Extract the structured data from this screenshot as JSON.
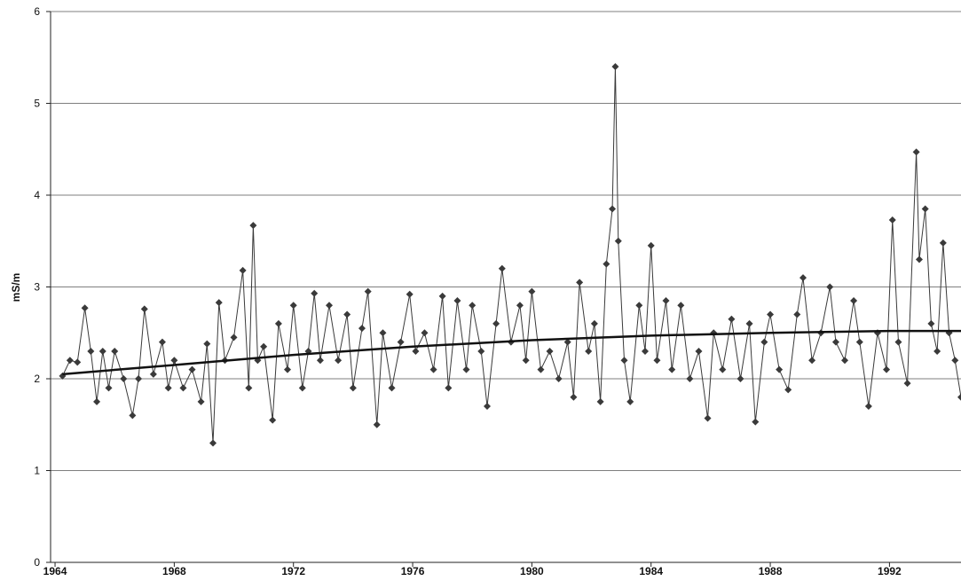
{
  "chart_data": {
    "type": "line",
    "ylabel": "mS/m",
    "xlim": [
      1963.85,
      1994.4
    ],
    "xticks": [
      1964,
      1968,
      1972,
      1976,
      1980,
      1984,
      1988,
      1992
    ],
    "ylim": [
      0,
      6
    ],
    "yticks": [
      0,
      1,
      2,
      3,
      4,
      5,
      6
    ],
    "grid": true,
    "series": [
      {
        "color": "#3a3a3a",
        "marker": "diamond",
        "x": [
          1964.25,
          1964.5,
          1964.75,
          1965.0,
          1965.2,
          1965.4,
          1965.6,
          1965.8,
          1966.0,
          1966.3,
          1966.6,
          1966.8,
          1967.0,
          1967.3,
          1967.6,
          1967.8,
          1968.0,
          1968.3,
          1968.6,
          1968.9,
          1969.1,
          1969.3,
          1969.5,
          1969.7,
          1970.0,
          1970.3,
          1970.5,
          1970.65,
          1970.8,
          1971.0,
          1971.3,
          1971.5,
          1971.8,
          1972.0,
          1972.3,
          1972.5,
          1972.7,
          1972.9,
          1973.2,
          1973.5,
          1973.8,
          1974.0,
          1974.3,
          1974.5,
          1974.8,
          1975.0,
          1975.3,
          1975.6,
          1975.9,
          1976.1,
          1976.4,
          1976.7,
          1977.0,
          1977.2,
          1977.5,
          1977.8,
          1978.0,
          1978.3,
          1978.5,
          1978.8,
          1979.0,
          1979.3,
          1979.6,
          1979.8,
          1980.0,
          1980.3,
          1980.6,
          1980.9,
          1981.2,
          1981.4,
          1981.6,
          1981.9,
          1982.1,
          1982.3,
          1982.5,
          1982.7,
          1982.8,
          1982.9,
          1983.1,
          1983.3,
          1983.6,
          1983.8,
          1984.0,
          1984.2,
          1984.5,
          1984.7,
          1985.0,
          1985.3,
          1985.6,
          1985.9,
          1986.1,
          1986.4,
          1986.7,
          1987.0,
          1987.3,
          1987.5,
          1987.8,
          1988.0,
          1988.3,
          1988.6,
          1988.9,
          1989.1,
          1989.4,
          1989.7,
          1990.0,
          1990.2,
          1990.5,
          1990.8,
          1991.0,
          1991.3,
          1991.6,
          1991.9,
          1992.1,
          1992.3,
          1992.6,
          1992.9,
          1993.0,
          1993.2,
          1993.4,
          1993.6,
          1993.8,
          1994.0,
          1994.2,
          1994.4
        ],
        "values": [
          2.03,
          2.2,
          2.18,
          2.77,
          2.3,
          1.75,
          2.3,
          1.9,
          2.3,
          2.0,
          1.6,
          2.0,
          2.76,
          2.05,
          2.4,
          1.9,
          2.2,
          1.9,
          2.1,
          1.75,
          2.38,
          1.3,
          2.83,
          2.2,
          2.45,
          3.18,
          1.9,
          3.67,
          2.2,
          2.35,
          1.55,
          2.6,
          2.1,
          2.8,
          1.9,
          2.3,
          2.93,
          2.2,
          2.8,
          2.2,
          2.7,
          1.9,
          2.55,
          2.95,
          1.5,
          2.5,
          1.9,
          2.4,
          2.92,
          2.3,
          2.5,
          2.1,
          2.9,
          1.9,
          2.85,
          2.1,
          2.8,
          2.3,
          1.7,
          2.6,
          3.2,
          2.4,
          2.8,
          2.2,
          2.95,
          2.1,
          2.3,
          2.0,
          2.4,
          1.8,
          3.05,
          2.3,
          2.6,
          1.75,
          3.25,
          3.85,
          5.4,
          3.5,
          2.2,
          1.75,
          2.8,
          2.3,
          3.45,
          2.2,
          2.85,
          2.1,
          2.8,
          2.0,
          2.3,
          1.57,
          2.5,
          2.1,
          2.65,
          2.0,
          2.6,
          1.53,
          2.4,
          2.7,
          2.1,
          1.88,
          2.7,
          3.1,
          2.2,
          2.5,
          3.0,
          2.4,
          2.2,
          2.85,
          2.4,
          1.7,
          2.5,
          2.1,
          3.73,
          2.4,
          1.95,
          4.47,
          3.3,
          3.85,
          2.6,
          2.3,
          3.48,
          2.5,
          2.2,
          1.8
        ]
      },
      {
        "color": "#111111",
        "x": [
          1964.25,
          1968,
          1972,
          1976,
          1980,
          1984,
          1988,
          1992,
          1994.4
        ],
        "values": [
          2.05,
          2.15,
          2.26,
          2.35,
          2.42,
          2.47,
          2.5,
          2.52,
          2.52
        ]
      }
    ]
  }
}
